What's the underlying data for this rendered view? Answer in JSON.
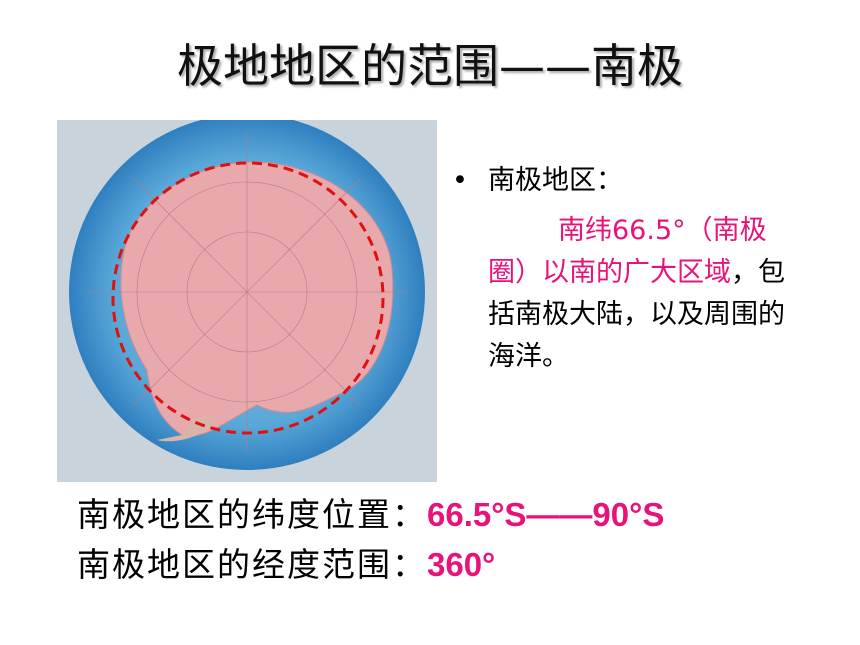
{
  "header": {
    "title": "极地地区的范围——南极"
  },
  "bullet": {
    "heading": "南极地区：",
    "highlight": "南纬66.5°（南极圈）以南的广大区域",
    "rest": "，包括南极大陆，以及周围的海洋。"
  },
  "facts": [
    {
      "label": "南极地区的纬度位置：",
      "value": "66.5°S——90°S"
    },
    {
      "label": "南极地区的经度范围：",
      "value": "360°"
    }
  ]
}
